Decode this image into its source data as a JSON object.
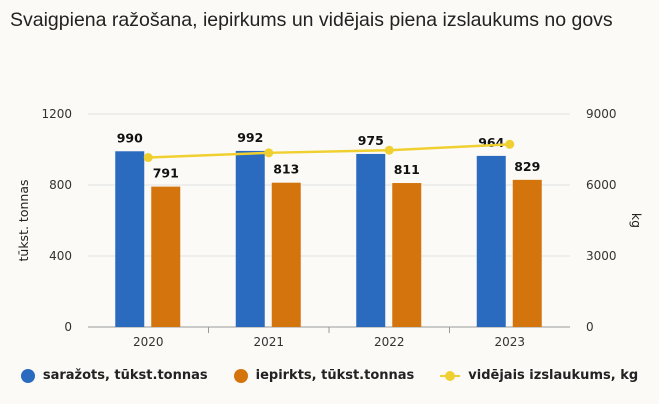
{
  "title": "Svaigpiena ražošana, iepirkums un vidējais piena izslaukums no govs",
  "chart_data": {
    "type": "bar+line",
    "title": "Svaigpiena ražošana, iepirkums un vidējais piena izslaukums no govs",
    "categories": [
      "2020",
      "2021",
      "2022",
      "2023"
    ],
    "ylabel": "tūkst. tonnas",
    "y2label": "kg",
    "ylim": [
      0,
      1200
    ],
    "y2lim": [
      0,
      9000
    ],
    "yticks": [
      "0",
      "400",
      "800",
      "1200"
    ],
    "y2ticks": [
      "0",
      "3000",
      "6000",
      "9000"
    ],
    "grid": true,
    "legend": "bottom",
    "series": [
      {
        "name": "saražots, tūkst.tonnas",
        "type": "bar",
        "axis": "left",
        "color": "#2a6bbf",
        "values": [
          990,
          992,
          975,
          964
        ],
        "labels": [
          "990",
          "992",
          "975",
          "964"
        ]
      },
      {
        "name": "iepirkts, tūkst.tonnas",
        "type": "bar",
        "axis": "left",
        "color": "#d4740c",
        "values": [
          791,
          813,
          811,
          829
        ],
        "labels": [
          "791",
          "813",
          "811",
          "829"
        ]
      },
      {
        "name": "vidējais izslaukums, kg",
        "type": "line",
        "axis": "right",
        "color": "#f0d030",
        "values": [
          7160,
          7360,
          7470,
          7720
        ]
      }
    ]
  }
}
